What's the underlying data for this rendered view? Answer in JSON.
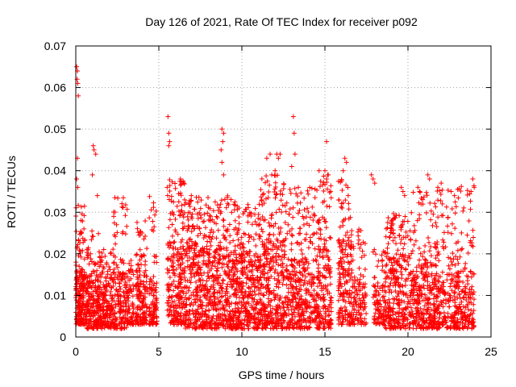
{
  "chart_data": {
    "type": "scatter",
    "title": "Day 126 of 2021, Rate Of TEC Index for receiver p092",
    "xlabel": "GPS time / hours",
    "ylabel": "ROTI / TECUs",
    "xlim": [
      0,
      25
    ],
    "ylim": [
      0,
      0.07
    ],
    "xticks": [
      0,
      5,
      10,
      15,
      20,
      25
    ],
    "yticks": [
      0,
      0.01,
      0.02,
      0.03,
      0.04,
      0.05,
      0.06,
      0.07
    ],
    "xtick_labels": [
      "0",
      "5",
      "10",
      "15",
      "20",
      "25"
    ],
    "ytick_labels": [
      "0",
      "0.01",
      "0.02",
      "0.03",
      "0.04",
      "0.05",
      "0.06",
      "0.07"
    ],
    "grid": true,
    "marker": "+",
    "color": "#ff0000",
    "series": [
      {
        "name": "ROTI",
        "clusters": [
          {
            "x": [
              0.0,
              0.6
            ],
            "base": [
              0.003,
              0.016
            ],
            "peak": 0.032,
            "n": 220
          },
          {
            "x": [
              0.6,
              1.4
            ],
            "base": [
              0.002,
              0.015
            ],
            "peak": 0.026,
            "n": 200
          },
          {
            "x": [
              1.4,
              2.0
            ],
            "base": [
              0.002,
              0.013
            ],
            "peak": 0.022,
            "n": 140
          },
          {
            "x": [
              2.0,
              3.1
            ],
            "base": [
              0.002,
              0.016
            ],
            "peak": 0.034,
            "n": 220
          },
          {
            "x": [
              3.1,
              3.5
            ],
            "base": [
              0.003,
              0.012
            ],
            "peak": 0.019,
            "n": 70
          },
          {
            "x": [
              3.6,
              4.3
            ],
            "base": [
              0.003,
              0.015
            ],
            "peak": 0.028,
            "n": 150
          },
          {
            "x": [
              4.4,
              4.9
            ],
            "base": [
              0.003,
              0.014
            ],
            "peak": 0.034,
            "n": 100
          },
          {
            "x": [
              5.5,
              6.6
            ],
            "base": [
              0.003,
              0.02
            ],
            "peak": 0.038,
            "n": 260
          },
          {
            "x": [
              6.6,
              8.0
            ],
            "base": [
              0.002,
              0.022
            ],
            "peak": 0.034,
            "n": 330
          },
          {
            "x": [
              8.0,
              9.6
            ],
            "base": [
              0.002,
              0.022
            ],
            "peak": 0.034,
            "n": 360
          },
          {
            "x": [
              9.6,
              11.0
            ],
            "base": [
              0.002,
              0.02
            ],
            "peak": 0.032,
            "n": 330
          },
          {
            "x": [
              11.0,
              12.6
            ],
            "base": [
              0.002,
              0.024
            ],
            "peak": 0.039,
            "n": 380
          },
          {
            "x": [
              12.6,
              14.6
            ],
            "base": [
              0.002,
              0.019
            ],
            "peak": 0.036,
            "n": 380
          },
          {
            "x": [
              14.6,
              15.4
            ],
            "base": [
              0.002,
              0.024
            ],
            "peak": 0.04,
            "n": 170
          },
          {
            "x": [
              15.8,
              16.6
            ],
            "base": [
              0.003,
              0.024
            ],
            "peak": 0.038,
            "n": 170
          },
          {
            "x": [
              16.6,
              17.5
            ],
            "base": [
              0.003,
              0.014
            ],
            "peak": 0.026,
            "n": 120
          },
          {
            "x": [
              17.9,
              18.6
            ],
            "base": [
              0.003,
              0.013
            ],
            "peak": 0.022,
            "n": 90
          },
          {
            "x": [
              18.6,
              20.3
            ],
            "base": [
              0.002,
              0.02
            ],
            "peak": 0.03,
            "n": 330
          },
          {
            "x": [
              20.3,
              21.8
            ],
            "base": [
              0.002,
              0.018
            ],
            "peak": 0.036,
            "n": 300
          },
          {
            "x": [
              21.8,
              24.0
            ],
            "base": [
              0.002,
              0.016
            ],
            "peak": 0.037,
            "n": 360
          }
        ],
        "outliers": [
          [
            0.05,
            0.065
          ],
          [
            0.1,
            0.064
          ],
          [
            0.08,
            0.062
          ],
          [
            0.12,
            0.061
          ],
          [
            0.15,
            0.058
          ],
          [
            0.1,
            0.043
          ],
          [
            0.05,
            0.038
          ],
          [
            0.12,
            0.036
          ],
          [
            1.05,
            0.046
          ],
          [
            1.1,
            0.045
          ],
          [
            1.2,
            0.044
          ],
          [
            1.0,
            0.039
          ],
          [
            1.3,
            0.034
          ],
          [
            5.55,
            0.053
          ],
          [
            5.6,
            0.049
          ],
          [
            5.65,
            0.047
          ],
          [
            5.6,
            0.046
          ],
          [
            5.5,
            0.036
          ],
          [
            6.3,
            0.038
          ],
          [
            6.5,
            0.037
          ],
          [
            8.8,
            0.05
          ],
          [
            8.9,
            0.049
          ],
          [
            8.85,
            0.047
          ],
          [
            8.75,
            0.045
          ],
          [
            8.8,
            0.042
          ],
          [
            8.9,
            0.039
          ],
          [
            11.7,
            0.044
          ],
          [
            11.5,
            0.043
          ],
          [
            12.1,
            0.044
          ],
          [
            12.2,
            0.043
          ],
          [
            12.3,
            0.044
          ],
          [
            11.8,
            0.039
          ],
          [
            12.0,
            0.04
          ],
          [
            13.1,
            0.053
          ],
          [
            13.15,
            0.049
          ],
          [
            13.2,
            0.044
          ],
          [
            13.0,
            0.041
          ],
          [
            13.4,
            0.036
          ],
          [
            15.1,
            0.047
          ],
          [
            15.0,
            0.04
          ],
          [
            15.2,
            0.039
          ],
          [
            15.1,
            0.038
          ],
          [
            16.2,
            0.043
          ],
          [
            16.3,
            0.042
          ],
          [
            16.1,
            0.04
          ],
          [
            16.4,
            0.034
          ],
          [
            17.8,
            0.039
          ],
          [
            17.9,
            0.038
          ],
          [
            18.0,
            0.037
          ],
          [
            19.6,
            0.036
          ],
          [
            19.7,
            0.035
          ],
          [
            19.8,
            0.034
          ],
          [
            20.6,
            0.036
          ],
          [
            20.7,
            0.035
          ],
          [
            21.2,
            0.039
          ],
          [
            21.3,
            0.038
          ],
          [
            21.8,
            0.036
          ],
          [
            22.0,
            0.037
          ],
          [
            22.6,
            0.035
          ],
          [
            22.8,
            0.034
          ],
          [
            23.9,
            0.038
          ],
          [
            23.8,
            0.035
          ]
        ]
      }
    ]
  }
}
